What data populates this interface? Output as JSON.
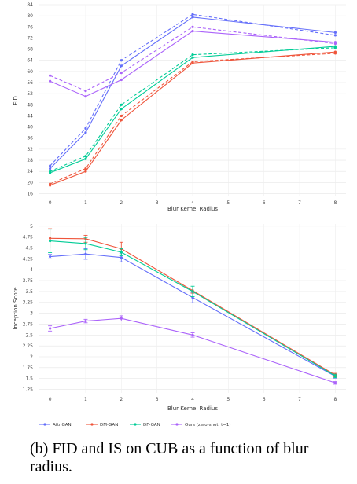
{
  "caption": "(b) FID and IS on CUB as a function of blur radius.",
  "colors": {
    "AttnGAN": "#636efa",
    "DM-GAN": "#ef553b",
    "DF-GAN": "#00cc96",
    "Ours (zero-shot, t=1)": "#ab63fa"
  },
  "chart_data": [
    {
      "type": "line",
      "xlabel": "Blur Kernel Radius",
      "ylabel": "FID",
      "xlim": [
        -0.3,
        8.3
      ],
      "ylim": [
        15,
        84
      ],
      "xticks": [
        0,
        1,
        2,
        3,
        4,
        5,
        6,
        7,
        8
      ],
      "yticks": [
        16,
        20,
        24,
        28,
        32,
        36,
        40,
        44,
        48,
        52,
        56,
        60,
        64,
        68,
        72,
        76,
        80,
        84
      ],
      "grid": true,
      "series": [
        {
          "name": "AttnGAN",
          "style": "solid",
          "x": [
            0,
            1,
            2,
            4,
            8
          ],
          "y": [
            25.0,
            38.0,
            62.0,
            79.5,
            74.0
          ]
        },
        {
          "name": "AttnGAN",
          "style": "dashed",
          "x": [
            0,
            1,
            2,
            4,
            8
          ],
          "y": [
            26.0,
            39.5,
            64.0,
            80.5,
            73.0
          ]
        },
        {
          "name": "DM-GAN",
          "style": "solid",
          "x": [
            0,
            1,
            2,
            4,
            8
          ],
          "y": [
            19.0,
            24.0,
            42.5,
            63.0,
            67.0
          ]
        },
        {
          "name": "DM-GAN",
          "style": "dashed",
          "x": [
            0,
            1,
            2,
            4,
            8
          ],
          "y": [
            19.5,
            25.0,
            44.0,
            63.5,
            66.5
          ]
        },
        {
          "name": "DF-GAN",
          "style": "solid",
          "x": [
            0,
            1,
            2,
            4,
            8
          ],
          "y": [
            23.5,
            28.5,
            46.5,
            65.0,
            69.0
          ]
        },
        {
          "name": "DF-GAN",
          "style": "dashed",
          "x": [
            0,
            1,
            2,
            4,
            8
          ],
          "y": [
            24.0,
            29.5,
            48.0,
            66.0,
            68.5
          ]
        },
        {
          "name": "Ours (zero-shot, t=1)",
          "style": "solid",
          "x": [
            0,
            1,
            2,
            4,
            8
          ],
          "y": [
            56.5,
            51.0,
            57.0,
            74.5,
            70.5
          ]
        },
        {
          "name": "Ours (zero-shot, t=1)",
          "style": "dashed",
          "x": [
            0,
            1,
            2,
            4,
            8
          ],
          "y": [
            58.5,
            53.0,
            59.5,
            76.0,
            70.0
          ]
        }
      ]
    },
    {
      "type": "line",
      "xlabel": "Blur Kernel Radius",
      "ylabel": "Inception Score",
      "xlim": [
        -0.3,
        8.3
      ],
      "ylim": [
        1.17,
        5.05
      ],
      "xticks": [
        0,
        1,
        2,
        3,
        4,
        5,
        6,
        7,
        8
      ],
      "yticks": [
        "1.25",
        "1.5",
        "1.75",
        "2",
        "2.25",
        "2.5",
        "2.75",
        "3",
        "3.25",
        "3.5",
        "3.75",
        "4",
        "4.25",
        "4.5",
        "4.75",
        "5"
      ],
      "grid": true,
      "legend": "bottom-left",
      "series": [
        {
          "name": "AttnGAN",
          "x": [
            0,
            1,
            2,
            4,
            8
          ],
          "y": [
            4.3,
            4.36,
            4.28,
            3.36,
            1.55
          ],
          "err": [
            0.05,
            0.12,
            0.1,
            0.12,
            0.04
          ]
        },
        {
          "name": "DM-GAN",
          "x": [
            0,
            1,
            2,
            4,
            8
          ],
          "y": [
            4.72,
            4.71,
            4.48,
            3.52,
            1.58
          ],
          "err": [
            0.22,
            0.08,
            0.15,
            0.06,
            0.04
          ]
        },
        {
          "name": "DF-GAN",
          "x": [
            0,
            1,
            2,
            4,
            8
          ],
          "y": [
            4.66,
            4.6,
            4.4,
            3.5,
            1.56
          ],
          "err": [
            0.27,
            0.14,
            0.08,
            0.12,
            0.04
          ]
        },
        {
          "name": "Ours (zero-shot, t=1)",
          "x": [
            0,
            1,
            2,
            4,
            8
          ],
          "y": [
            2.65,
            2.82,
            2.88,
            2.5,
            1.4
          ],
          "err": [
            0.06,
            0.04,
            0.06,
            0.05,
            0.03
          ]
        }
      ]
    }
  ]
}
